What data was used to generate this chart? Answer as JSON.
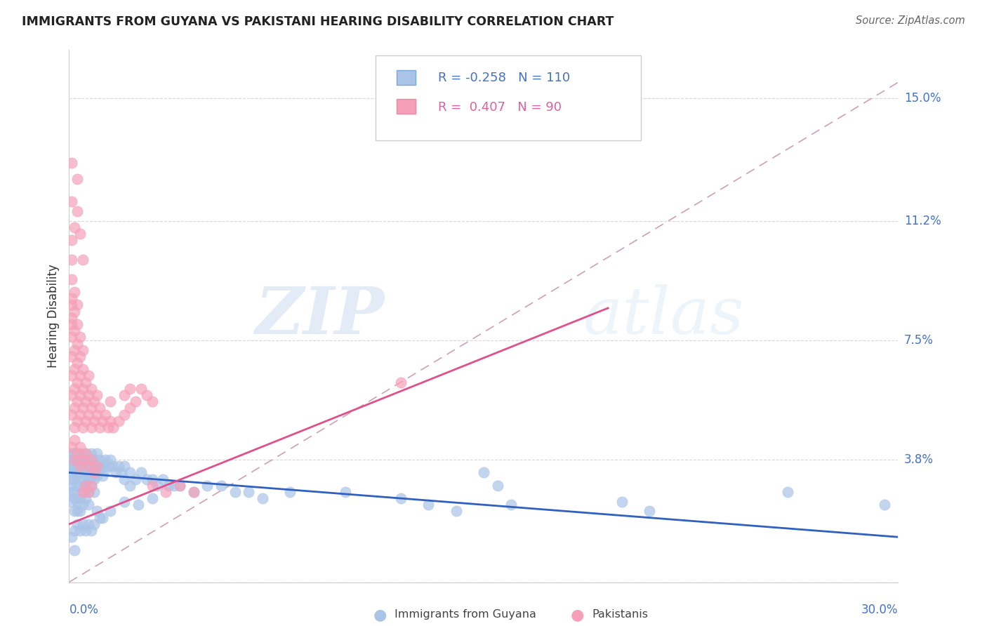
{
  "title": "IMMIGRANTS FROM GUYANA VS PAKISTANI HEARING DISABILITY CORRELATION CHART",
  "source": "Source: ZipAtlas.com",
  "ylabel": "Hearing Disability",
  "yticks": [
    0.0,
    0.038,
    0.075,
    0.112,
    0.15
  ],
  "ytick_labels": [
    "",
    "3.8%",
    "7.5%",
    "11.2%",
    "15.0%"
  ],
  "xlim": [
    0.0,
    0.3
  ],
  "ylim": [
    0.0,
    0.165
  ],
  "legend_R1": "-0.258",
  "legend_N1": "110",
  "legend_R2": " 0.407",
  "legend_N2": "90",
  "watermark_zip": "ZIP",
  "watermark_atlas": "atlas",
  "blue_color": "#aac4e8",
  "pink_color": "#f5a0b8",
  "trendline_blue": "#3060c0",
  "trendline_pink": "#e0508a",
  "blue_trend_x": [
    0.0,
    0.3
  ],
  "blue_trend_y": [
    0.034,
    0.014
  ],
  "pink_trend_x": [
    0.0,
    0.195
  ],
  "pink_trend_y": [
    0.018,
    0.085
  ],
  "dash_line_x": [
    0.0,
    0.3
  ],
  "dash_line_y": [
    0.0,
    0.155
  ],
  "blue_scatter": [
    [
      0.001,
      0.036
    ],
    [
      0.001,
      0.038
    ],
    [
      0.001,
      0.032
    ],
    [
      0.001,
      0.028
    ],
    [
      0.001,
      0.034
    ],
    [
      0.001,
      0.03
    ],
    [
      0.001,
      0.025
    ],
    [
      0.002,
      0.038
    ],
    [
      0.002,
      0.035
    ],
    [
      0.002,
      0.032
    ],
    [
      0.002,
      0.028
    ],
    [
      0.002,
      0.04
    ],
    [
      0.002,
      0.026
    ],
    [
      0.002,
      0.022
    ],
    [
      0.002,
      0.036
    ],
    [
      0.003,
      0.036
    ],
    [
      0.003,
      0.033
    ],
    [
      0.003,
      0.03
    ],
    [
      0.003,
      0.038
    ],
    [
      0.003,
      0.025
    ],
    [
      0.003,
      0.022
    ],
    [
      0.004,
      0.04
    ],
    [
      0.004,
      0.037
    ],
    [
      0.004,
      0.034
    ],
    [
      0.004,
      0.03
    ],
    [
      0.004,
      0.026
    ],
    [
      0.004,
      0.022
    ],
    [
      0.005,
      0.038
    ],
    [
      0.005,
      0.035
    ],
    [
      0.005,
      0.032
    ],
    [
      0.005,
      0.028
    ],
    [
      0.005,
      0.024
    ],
    [
      0.006,
      0.04
    ],
    [
      0.006,
      0.036
    ],
    [
      0.006,
      0.033
    ],
    [
      0.006,
      0.03
    ],
    [
      0.006,
      0.026
    ],
    [
      0.007,
      0.038
    ],
    [
      0.007,
      0.035
    ],
    [
      0.007,
      0.032
    ],
    [
      0.007,
      0.028
    ],
    [
      0.007,
      0.024
    ],
    [
      0.008,
      0.04
    ],
    [
      0.008,
      0.036
    ],
    [
      0.008,
      0.033
    ],
    [
      0.008,
      0.03
    ],
    [
      0.009,
      0.038
    ],
    [
      0.009,
      0.035
    ],
    [
      0.009,
      0.032
    ],
    [
      0.009,
      0.028
    ],
    [
      0.01,
      0.04
    ],
    [
      0.01,
      0.036
    ],
    [
      0.01,
      0.033
    ],
    [
      0.011,
      0.038
    ],
    [
      0.011,
      0.035
    ],
    [
      0.012,
      0.036
    ],
    [
      0.012,
      0.033
    ],
    [
      0.013,
      0.038
    ],
    [
      0.013,
      0.035
    ],
    [
      0.014,
      0.036
    ],
    [
      0.015,
      0.038
    ],
    [
      0.016,
      0.036
    ],
    [
      0.017,
      0.034
    ],
    [
      0.018,
      0.036
    ],
    [
      0.019,
      0.034
    ],
    [
      0.02,
      0.036
    ],
    [
      0.02,
      0.032
    ],
    [
      0.022,
      0.034
    ],
    [
      0.022,
      0.03
    ],
    [
      0.024,
      0.032
    ],
    [
      0.026,
      0.034
    ],
    [
      0.028,
      0.032
    ],
    [
      0.03,
      0.032
    ],
    [
      0.032,
      0.03
    ],
    [
      0.034,
      0.032
    ],
    [
      0.036,
      0.03
    ],
    [
      0.038,
      0.03
    ],
    [
      0.04,
      0.03
    ],
    [
      0.045,
      0.028
    ],
    [
      0.05,
      0.03
    ],
    [
      0.055,
      0.03
    ],
    [
      0.06,
      0.028
    ],
    [
      0.065,
      0.028
    ],
    [
      0.07,
      0.026
    ],
    [
      0.001,
      0.014
    ],
    [
      0.002,
      0.016
    ],
    [
      0.002,
      0.01
    ],
    [
      0.15,
      0.034
    ],
    [
      0.155,
      0.03
    ],
    [
      0.16,
      0.024
    ],
    [
      0.2,
      0.025
    ],
    [
      0.21,
      0.022
    ],
    [
      0.13,
      0.024
    ],
    [
      0.14,
      0.022
    ],
    [
      0.26,
      0.028
    ],
    [
      0.295,
      0.024
    ],
    [
      0.12,
      0.026
    ],
    [
      0.1,
      0.028
    ],
    [
      0.08,
      0.028
    ],
    [
      0.003,
      0.018
    ],
    [
      0.004,
      0.016
    ],
    [
      0.005,
      0.018
    ],
    [
      0.006,
      0.016
    ],
    [
      0.007,
      0.018
    ],
    [
      0.008,
      0.016
    ],
    [
      0.009,
      0.018
    ],
    [
      0.01,
      0.022
    ],
    [
      0.011,
      0.02
    ],
    [
      0.012,
      0.02
    ],
    [
      0.015,
      0.022
    ],
    [
      0.02,
      0.025
    ],
    [
      0.025,
      0.024
    ],
    [
      0.03,
      0.026
    ],
    [
      0.001,
      0.04
    ]
  ],
  "pink_scatter": [
    [
      0.001,
      0.052
    ],
    [
      0.001,
      0.058
    ],
    [
      0.001,
      0.064
    ],
    [
      0.001,
      0.07
    ],
    [
      0.001,
      0.076
    ],
    [
      0.001,
      0.082
    ],
    [
      0.001,
      0.088
    ],
    [
      0.001,
      0.094
    ],
    [
      0.001,
      0.1
    ],
    [
      0.001,
      0.106
    ],
    [
      0.002,
      0.048
    ],
    [
      0.002,
      0.054
    ],
    [
      0.002,
      0.06
    ],
    [
      0.002,
      0.066
    ],
    [
      0.002,
      0.072
    ],
    [
      0.002,
      0.078
    ],
    [
      0.002,
      0.084
    ],
    [
      0.002,
      0.09
    ],
    [
      0.003,
      0.05
    ],
    [
      0.003,
      0.056
    ],
    [
      0.003,
      0.062
    ],
    [
      0.003,
      0.068
    ],
    [
      0.003,
      0.074
    ],
    [
      0.003,
      0.08
    ],
    [
      0.003,
      0.086
    ],
    [
      0.004,
      0.052
    ],
    [
      0.004,
      0.058
    ],
    [
      0.004,
      0.064
    ],
    [
      0.004,
      0.07
    ],
    [
      0.004,
      0.076
    ],
    [
      0.005,
      0.048
    ],
    [
      0.005,
      0.054
    ],
    [
      0.005,
      0.06
    ],
    [
      0.005,
      0.066
    ],
    [
      0.005,
      0.072
    ],
    [
      0.006,
      0.05
    ],
    [
      0.006,
      0.056
    ],
    [
      0.006,
      0.062
    ],
    [
      0.007,
      0.052
    ],
    [
      0.007,
      0.058
    ],
    [
      0.007,
      0.064
    ],
    [
      0.008,
      0.048
    ],
    [
      0.008,
      0.054
    ],
    [
      0.008,
      0.06
    ],
    [
      0.009,
      0.05
    ],
    [
      0.009,
      0.056
    ],
    [
      0.01,
      0.052
    ],
    [
      0.01,
      0.058
    ],
    [
      0.011,
      0.048
    ],
    [
      0.011,
      0.054
    ],
    [
      0.012,
      0.05
    ],
    [
      0.013,
      0.052
    ],
    [
      0.014,
      0.048
    ],
    [
      0.015,
      0.05
    ],
    [
      0.015,
      0.056
    ],
    [
      0.016,
      0.048
    ],
    [
      0.018,
      0.05
    ],
    [
      0.02,
      0.052
    ],
    [
      0.02,
      0.058
    ],
    [
      0.022,
      0.054
    ],
    [
      0.022,
      0.06
    ],
    [
      0.024,
      0.056
    ],
    [
      0.026,
      0.06
    ],
    [
      0.028,
      0.058
    ],
    [
      0.03,
      0.056
    ],
    [
      0.001,
      0.042
    ],
    [
      0.002,
      0.038
    ],
    [
      0.002,
      0.044
    ],
    [
      0.003,
      0.04
    ],
    [
      0.004,
      0.036
    ],
    [
      0.004,
      0.042
    ],
    [
      0.005,
      0.038
    ],
    [
      0.006,
      0.04
    ],
    [
      0.007,
      0.036
    ],
    [
      0.008,
      0.038
    ],
    [
      0.009,
      0.034
    ],
    [
      0.01,
      0.036
    ],
    [
      0.002,
      0.11
    ],
    [
      0.003,
      0.115
    ],
    [
      0.001,
      0.118
    ],
    [
      0.004,
      0.108
    ],
    [
      0.005,
      0.1
    ],
    [
      0.12,
      0.062
    ],
    [
      0.001,
      0.13
    ],
    [
      0.003,
      0.125
    ],
    [
      0.001,
      0.08
    ],
    [
      0.001,
      0.086
    ],
    [
      0.005,
      0.028
    ],
    [
      0.006,
      0.03
    ],
    [
      0.007,
      0.028
    ],
    [
      0.008,
      0.03
    ],
    [
      0.03,
      0.03
    ],
    [
      0.035,
      0.028
    ],
    [
      0.04,
      0.03
    ],
    [
      0.045,
      0.028
    ]
  ]
}
